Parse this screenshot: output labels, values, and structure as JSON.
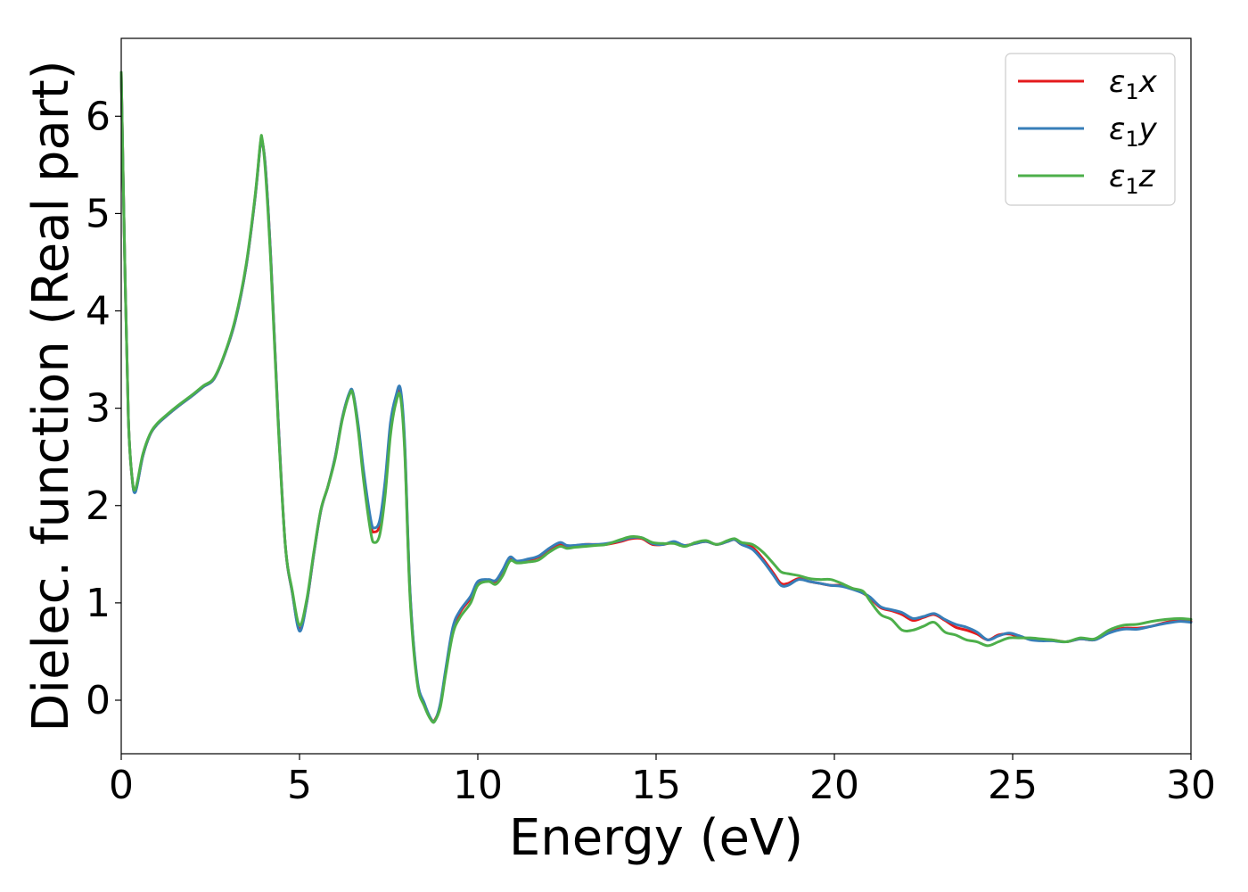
{
  "chart_data": {
    "type": "line",
    "title": "",
    "xlabel": "Energy (eV)",
    "ylabel": "Dielec. function (Real part)",
    "xlim": [
      0,
      30
    ],
    "ylim": [
      -0.55,
      6.8
    ],
    "xticks": [
      0,
      5,
      10,
      15,
      20,
      25,
      30
    ],
    "yticks": [
      0,
      1,
      2,
      3,
      4,
      5,
      6
    ],
    "grid": false,
    "legend_position": "top-right",
    "series": [
      {
        "name": "ε1x",
        "legend_base": "ε",
        "legend_sub": "1",
        "legend_suffix": "x",
        "color": "#e41a1c",
        "x": [
          0,
          0.1,
          0.2,
          0.3,
          0.4,
          0.6,
          0.8,
          1.0,
          1.3,
          1.6,
          2.0,
          2.3,
          2.6,
          2.9,
          3.2,
          3.5,
          3.75,
          3.9,
          3.95,
          4.05,
          4.2,
          4.4,
          4.6,
          4.8,
          5.0,
          5.2,
          5.4,
          5.6,
          5.8,
          6.0,
          6.2,
          6.4,
          6.5,
          6.65,
          6.8,
          7.0,
          7.1,
          7.25,
          7.4,
          7.55,
          7.7,
          7.83,
          7.95,
          8.1,
          8.3,
          8.5,
          8.7,
          8.8,
          8.95,
          9.1,
          9.3,
          9.5,
          9.8,
          10.0,
          10.3,
          10.5,
          10.7,
          10.9,
          11.1,
          11.4,
          11.7,
          12.0,
          12.3,
          12.5,
          12.7,
          13.0,
          13.3,
          13.6,
          14.0,
          14.3,
          14.6,
          14.9,
          15.2,
          15.5,
          15.8,
          16.1,
          16.4,
          16.7,
          17.0,
          17.2,
          17.4,
          17.7,
          18.0,
          18.3,
          18.5,
          18.7,
          19.0,
          19.3,
          19.6,
          19.9,
          20.2,
          20.5,
          20.8,
          21.0,
          21.3,
          21.6,
          21.9,
          22.2,
          22.5,
          22.8,
          23.1,
          23.4,
          23.7,
          24.0,
          24.3,
          24.6,
          24.9,
          25.2,
          25.5,
          25.8,
          26.1,
          26.5,
          26.9,
          27.3,
          27.7,
          28.1,
          28.5,
          28.9,
          29.3,
          29.7,
          30.0
        ],
        "y": [
          6.45,
          4.5,
          2.9,
          2.3,
          2.15,
          2.5,
          2.72,
          2.83,
          2.93,
          3.02,
          3.13,
          3.22,
          3.3,
          3.55,
          3.9,
          4.45,
          5.15,
          5.7,
          5.75,
          5.45,
          4.5,
          2.9,
          1.6,
          1.1,
          0.73,
          1.0,
          1.5,
          1.95,
          2.2,
          2.5,
          2.9,
          3.15,
          3.15,
          2.8,
          2.3,
          1.8,
          1.73,
          1.8,
          2.2,
          2.8,
          3.1,
          3.17,
          2.6,
          1.1,
          0.2,
          -0.05,
          -0.2,
          -0.2,
          -0.05,
          0.3,
          0.72,
          0.9,
          1.05,
          1.2,
          1.23,
          1.22,
          1.32,
          1.45,
          1.42,
          1.44,
          1.47,
          1.55,
          1.6,
          1.58,
          1.58,
          1.6,
          1.6,
          1.6,
          1.63,
          1.66,
          1.66,
          1.6,
          1.6,
          1.62,
          1.59,
          1.61,
          1.63,
          1.6,
          1.63,
          1.65,
          1.6,
          1.57,
          1.45,
          1.3,
          1.2,
          1.2,
          1.25,
          1.22,
          1.2,
          1.18,
          1.18,
          1.15,
          1.1,
          1.05,
          0.95,
          0.92,
          0.88,
          0.82,
          0.85,
          0.88,
          0.82,
          0.75,
          0.72,
          0.68,
          0.62,
          0.67,
          0.68,
          0.65,
          0.63,
          0.62,
          0.62,
          0.6,
          0.63,
          0.62,
          0.7,
          0.74,
          0.74,
          0.76,
          0.8,
          0.82,
          0.81
        ]
      },
      {
        "name": "ε1y",
        "legend_base": "ε",
        "legend_sub": "1",
        "legend_suffix": "y",
        "color": "#377eb8",
        "x": [
          0,
          0.1,
          0.2,
          0.3,
          0.4,
          0.6,
          0.8,
          1.0,
          1.3,
          1.6,
          2.0,
          2.3,
          2.6,
          2.9,
          3.2,
          3.5,
          3.75,
          3.9,
          3.95,
          4.05,
          4.2,
          4.4,
          4.6,
          4.8,
          5.0,
          5.2,
          5.4,
          5.6,
          5.8,
          6.0,
          6.2,
          6.4,
          6.5,
          6.65,
          6.8,
          7.0,
          7.1,
          7.25,
          7.4,
          7.55,
          7.7,
          7.83,
          7.95,
          8.1,
          8.3,
          8.5,
          8.7,
          8.8,
          8.95,
          9.1,
          9.3,
          9.5,
          9.8,
          10.0,
          10.3,
          10.5,
          10.7,
          10.9,
          11.1,
          11.4,
          11.7,
          12.0,
          12.3,
          12.5,
          12.7,
          13.0,
          13.3,
          13.6,
          14.0,
          14.3,
          14.6,
          14.9,
          15.2,
          15.5,
          15.8,
          16.1,
          16.4,
          16.7,
          17.0,
          17.2,
          17.4,
          17.7,
          18.0,
          18.3,
          18.5,
          18.7,
          19.0,
          19.3,
          19.6,
          19.9,
          20.2,
          20.5,
          20.8,
          21.0,
          21.3,
          21.6,
          21.9,
          22.2,
          22.5,
          22.8,
          23.1,
          23.4,
          23.7,
          24.0,
          24.3,
          24.6,
          24.9,
          25.2,
          25.5,
          25.8,
          26.1,
          26.5,
          26.9,
          27.3,
          27.7,
          28.1,
          28.5,
          28.9,
          29.3,
          29.7,
          30.0
        ],
        "y": [
          6.45,
          4.5,
          2.9,
          2.3,
          2.14,
          2.5,
          2.72,
          2.83,
          2.93,
          3.02,
          3.13,
          3.22,
          3.3,
          3.55,
          3.9,
          4.45,
          5.15,
          5.7,
          5.75,
          5.45,
          4.5,
          2.9,
          1.6,
          1.1,
          0.71,
          1.0,
          1.5,
          1.95,
          2.2,
          2.5,
          2.9,
          3.16,
          3.16,
          2.82,
          2.35,
          1.85,
          1.77,
          1.85,
          2.25,
          2.85,
          3.12,
          3.2,
          2.65,
          1.12,
          0.22,
          -0.03,
          -0.2,
          -0.21,
          -0.03,
          0.32,
          0.75,
          0.92,
          1.07,
          1.22,
          1.24,
          1.23,
          1.34,
          1.47,
          1.43,
          1.45,
          1.48,
          1.56,
          1.62,
          1.59,
          1.59,
          1.6,
          1.6,
          1.61,
          1.64,
          1.67,
          1.67,
          1.61,
          1.6,
          1.63,
          1.59,
          1.61,
          1.63,
          1.6,
          1.63,
          1.65,
          1.6,
          1.55,
          1.43,
          1.28,
          1.18,
          1.18,
          1.24,
          1.22,
          1.2,
          1.18,
          1.17,
          1.14,
          1.1,
          1.06,
          0.96,
          0.93,
          0.9,
          0.84,
          0.86,
          0.89,
          0.83,
          0.78,
          0.75,
          0.7,
          0.62,
          0.66,
          0.69,
          0.66,
          0.62,
          0.61,
          0.61,
          0.6,
          0.63,
          0.62,
          0.69,
          0.73,
          0.73,
          0.76,
          0.79,
          0.81,
          0.8
        ]
      },
      {
        "name": "ε1z",
        "legend_base": "ε",
        "legend_sub": "1",
        "legend_suffix": "z",
        "color": "#4daf4a",
        "x": [
          0,
          0.1,
          0.2,
          0.3,
          0.4,
          0.6,
          0.8,
          1.0,
          1.3,
          1.6,
          2.0,
          2.3,
          2.6,
          2.9,
          3.2,
          3.5,
          3.75,
          3.9,
          3.95,
          4.05,
          4.2,
          4.4,
          4.6,
          4.8,
          5.0,
          5.2,
          5.4,
          5.6,
          5.8,
          6.0,
          6.2,
          6.4,
          6.5,
          6.65,
          6.8,
          7.0,
          7.1,
          7.25,
          7.4,
          7.55,
          7.7,
          7.83,
          7.95,
          8.1,
          8.3,
          8.5,
          8.7,
          8.8,
          8.95,
          9.1,
          9.3,
          9.5,
          9.8,
          10.0,
          10.3,
          10.5,
          10.7,
          10.9,
          11.1,
          11.4,
          11.7,
          12.0,
          12.3,
          12.5,
          12.7,
          13.0,
          13.3,
          13.6,
          14.0,
          14.3,
          14.6,
          14.9,
          15.2,
          15.5,
          15.8,
          16.1,
          16.4,
          16.7,
          17.0,
          17.2,
          17.4,
          17.7,
          18.0,
          18.3,
          18.5,
          18.7,
          19.0,
          19.3,
          19.6,
          19.9,
          20.2,
          20.5,
          20.8,
          21.0,
          21.3,
          21.6,
          21.9,
          22.2,
          22.5,
          22.8,
          23.1,
          23.4,
          23.7,
          24.0,
          24.3,
          24.6,
          24.9,
          25.2,
          25.5,
          25.8,
          26.1,
          26.5,
          26.9,
          27.3,
          27.7,
          28.1,
          28.5,
          28.9,
          29.3,
          29.7,
          30.0
        ],
        "y": [
          6.45,
          4.5,
          2.9,
          2.3,
          2.17,
          2.52,
          2.73,
          2.84,
          2.94,
          3.03,
          3.14,
          3.23,
          3.31,
          3.56,
          3.92,
          4.47,
          5.17,
          5.72,
          5.77,
          5.4,
          4.45,
          2.85,
          1.6,
          1.12,
          0.77,
          1.03,
          1.52,
          1.96,
          2.2,
          2.48,
          2.88,
          3.14,
          3.14,
          2.76,
          2.25,
          1.72,
          1.62,
          1.7,
          2.1,
          2.72,
          3.05,
          3.12,
          2.55,
          1.05,
          0.18,
          -0.06,
          -0.21,
          -0.21,
          -0.07,
          0.27,
          0.68,
          0.85,
          1.0,
          1.18,
          1.22,
          1.19,
          1.28,
          1.43,
          1.41,
          1.42,
          1.44,
          1.52,
          1.58,
          1.56,
          1.57,
          1.58,
          1.59,
          1.6,
          1.65,
          1.68,
          1.67,
          1.62,
          1.61,
          1.61,
          1.58,
          1.62,
          1.64,
          1.6,
          1.64,
          1.66,
          1.62,
          1.6,
          1.52,
          1.4,
          1.32,
          1.3,
          1.28,
          1.25,
          1.24,
          1.24,
          1.2,
          1.15,
          1.12,
          1.02,
          0.88,
          0.83,
          0.72,
          0.72,
          0.76,
          0.8,
          0.7,
          0.67,
          0.62,
          0.6,
          0.56,
          0.6,
          0.64,
          0.64,
          0.64,
          0.63,
          0.62,
          0.6,
          0.64,
          0.63,
          0.72,
          0.77,
          0.78,
          0.81,
          0.83,
          0.84,
          0.83
        ]
      }
    ]
  }
}
